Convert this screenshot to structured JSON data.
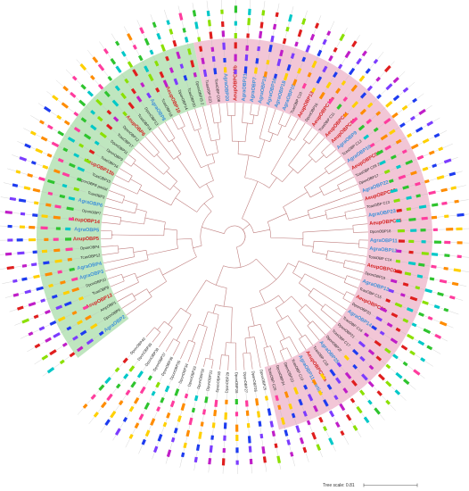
{
  "figure": {
    "scale_label": "Tree scale: 0.81",
    "colors": {
      "clade_green": "#bfe6bf",
      "clade_pink": "#f2c6d6",
      "branch": "#c08080",
      "highlight_red": "#d31f1f",
      "highlight_blue": "#3b8fd9",
      "plain_text": "#222222"
    },
    "motif_palette": [
      "#1e3cf0",
      "#e01e1e",
      "#2ec42e",
      "#ffd000",
      "#c01ec8",
      "#00c8c8",
      "#ff8c00",
      "#7c3cff",
      "#8be000",
      "#ff3c9e"
    ],
    "groups": [
      {
        "clade": "green",
        "leaves": [
          {
            "label": "AgraOBP2",
            "style": "blue"
          },
          {
            "label": "DponOBP6",
            "style": "plain"
          },
          {
            "label": "AmpOBP1",
            "style": "plain"
          },
          {
            "label": "AeupOBP12",
            "style": "red"
          },
          {
            "label": "TcasOBP8",
            "style": "plain"
          },
          {
            "label": "DponOBP10",
            "style": "plain"
          },
          {
            "label": "AgraOBP3",
            "style": "blue"
          },
          {
            "label": "AgraOBP4",
            "style": "blue"
          },
          {
            "label": "TcasOBP12",
            "style": "plain"
          },
          {
            "label": "DponOBP4",
            "style": "plain"
          },
          {
            "label": "AeupOBP5",
            "style": "red"
          },
          {
            "label": "AgraOBP5",
            "style": "blue"
          },
          {
            "label": "AeupOBP14",
            "style": "red"
          },
          {
            "label": "DponOBP7",
            "style": "plain"
          },
          {
            "label": "AgraOBP6",
            "style": "blue"
          },
          {
            "label": "TcasOBP3",
            "style": "plain"
          },
          {
            "label": "DponOBP8 partial",
            "style": "plain"
          },
          {
            "label": "TcasOBP15",
            "style": "plain"
          },
          {
            "label": "AeupOBP13b",
            "style": "red"
          },
          {
            "label": "TcasOBP16",
            "style": "plain"
          },
          {
            "label": "DponOBP9",
            "style": "plain"
          },
          {
            "label": "DponOBP11",
            "style": "plain"
          },
          {
            "label": "TcasOBP17",
            "style": "plain"
          },
          {
            "label": "DponOBP12",
            "style": "plain"
          },
          {
            "label": "AeupOBP6",
            "style": "red"
          },
          {
            "label": "TcasOBP18",
            "style": "plain"
          },
          {
            "label": "DponOBP13",
            "style": "plain"
          },
          {
            "label": "AgraOBP8",
            "style": "blue"
          },
          {
            "label": "TcasOBP19",
            "style": "plain"
          },
          {
            "label": "AeupOBP10",
            "style": "red"
          },
          {
            "label": "DponOBP14",
            "style": "plain"
          },
          {
            "label": "TcasOBP20",
            "style": "plain"
          },
          {
            "label": "DponOBP15 2",
            "style": "plain"
          }
        ]
      },
      {
        "clade": "pink",
        "leaves": [
          {
            "label": "TcasOBP C21",
            "style": "plain"
          },
          {
            "label": "TcasOBP C08",
            "style": "plain"
          },
          {
            "label": "AgraOBP20",
            "style": "blue"
          },
          {
            "label": "AeupOBPC10b",
            "style": "red"
          },
          {
            "label": "AgraOBP21",
            "style": "blue"
          },
          {
            "label": "AgraOBP7",
            "style": "blue"
          },
          {
            "label": "AgraOBP15",
            "style": "blue"
          },
          {
            "label": "AgraOBP16",
            "style": "blue"
          },
          {
            "label": "AgraOBP18",
            "style": "blue"
          },
          {
            "label": "AgraOBP19",
            "style": "blue"
          },
          {
            "label": "TcasOBP C10",
            "style": "plain"
          },
          {
            "label": "AeupOBP13",
            "style": "red"
          },
          {
            "label": "DponOBP16",
            "style": "plain"
          },
          {
            "label": "AeupOBPC10a",
            "style": "red"
          },
          {
            "label": "TcasOBP C11",
            "style": "plain"
          },
          {
            "label": "AeupOBPC11",
            "style": "red"
          },
          {
            "label": "AeupOBPC09",
            "style": "red"
          },
          {
            "label": "AgraOBP9",
            "style": "blue"
          },
          {
            "label": "TcasOBP C12",
            "style": "plain"
          },
          {
            "label": "AgraOBP10",
            "style": "blue"
          },
          {
            "label": "AeupOBPC08",
            "style": "red"
          },
          {
            "label": "TcasOBP C09 2",
            "style": "plain"
          },
          {
            "label": "DponOBP17",
            "style": "plain"
          },
          {
            "label": "AgraOBP22",
            "style": "blue"
          },
          {
            "label": "AeupOBPC06",
            "style": "red"
          },
          {
            "label": "TcasOBP C13",
            "style": "plain"
          },
          {
            "label": "AgraOBP23",
            "style": "blue"
          },
          {
            "label": "AeupOBPC05",
            "style": "red"
          },
          {
            "label": "DponOBP18",
            "style": "plain"
          },
          {
            "label": "AgraOBP11",
            "style": "blue"
          },
          {
            "label": "AgraOBP12",
            "style": "blue"
          },
          {
            "label": "TcasOBP C14",
            "style": "plain"
          },
          {
            "label": "AeupOBPC04b",
            "style": "red"
          },
          {
            "label": "DponOBP19",
            "style": "plain"
          },
          {
            "label": "AgraOBP13",
            "style": "blue"
          },
          {
            "label": "TcasOBP C15",
            "style": "plain"
          },
          {
            "label": "AeupOBPC03",
            "style": "red"
          },
          {
            "label": "DponOBP20",
            "style": "plain"
          },
          {
            "label": "AgraOBP14",
            "style": "blue"
          },
          {
            "label": "TcasOBP C16",
            "style": "plain"
          },
          {
            "label": "DponOBP21",
            "style": "plain"
          },
          {
            "label": "TcasOBP C17",
            "style": "plain"
          },
          {
            "label": "DponOBP22",
            "style": "plain"
          },
          {
            "label": "AgraOBP25",
            "style": "blue"
          },
          {
            "label": "TcasOBP C18",
            "style": "plain"
          },
          {
            "label": "AeupOBPC04a",
            "style": "red"
          },
          {
            "label": "AgraOBP11 partial",
            "style": "blue"
          },
          {
            "label": "TcasOBP C19",
            "style": "plain"
          },
          {
            "label": "DponOBP23",
            "style": "plain"
          },
          {
            "label": "DponOBP24",
            "style": "plain"
          },
          {
            "label": "TcasOBP C20",
            "style": "plain"
          }
        ]
      },
      {
        "clade": "none",
        "leaves": [
          {
            "label": "DponOBP25",
            "style": "plain"
          },
          {
            "label": "DponOBP26",
            "style": "plain"
          },
          {
            "label": "DponOBP27",
            "style": "plain"
          },
          {
            "label": "DponOBP28",
            "style": "plain"
          },
          {
            "label": "DponOBP29",
            "style": "plain"
          },
          {
            "label": "DponOBP30",
            "style": "plain"
          },
          {
            "label": "DponOBP31",
            "style": "plain"
          },
          {
            "label": "DponOBP32",
            "style": "plain"
          },
          {
            "label": "DponOBP33",
            "style": "plain"
          },
          {
            "label": "DponOBP34",
            "style": "plain"
          },
          {
            "label": "DponOBP35",
            "style": "plain"
          },
          {
            "label": "DponOBP36",
            "style": "plain"
          },
          {
            "label": "DponOBP37",
            "style": "plain"
          },
          {
            "label": "DponOBP38",
            "style": "plain"
          },
          {
            "label": "DponOBP39",
            "style": "plain"
          },
          {
            "label": "DponOBP40",
            "style": "plain"
          }
        ]
      }
    ]
  }
}
